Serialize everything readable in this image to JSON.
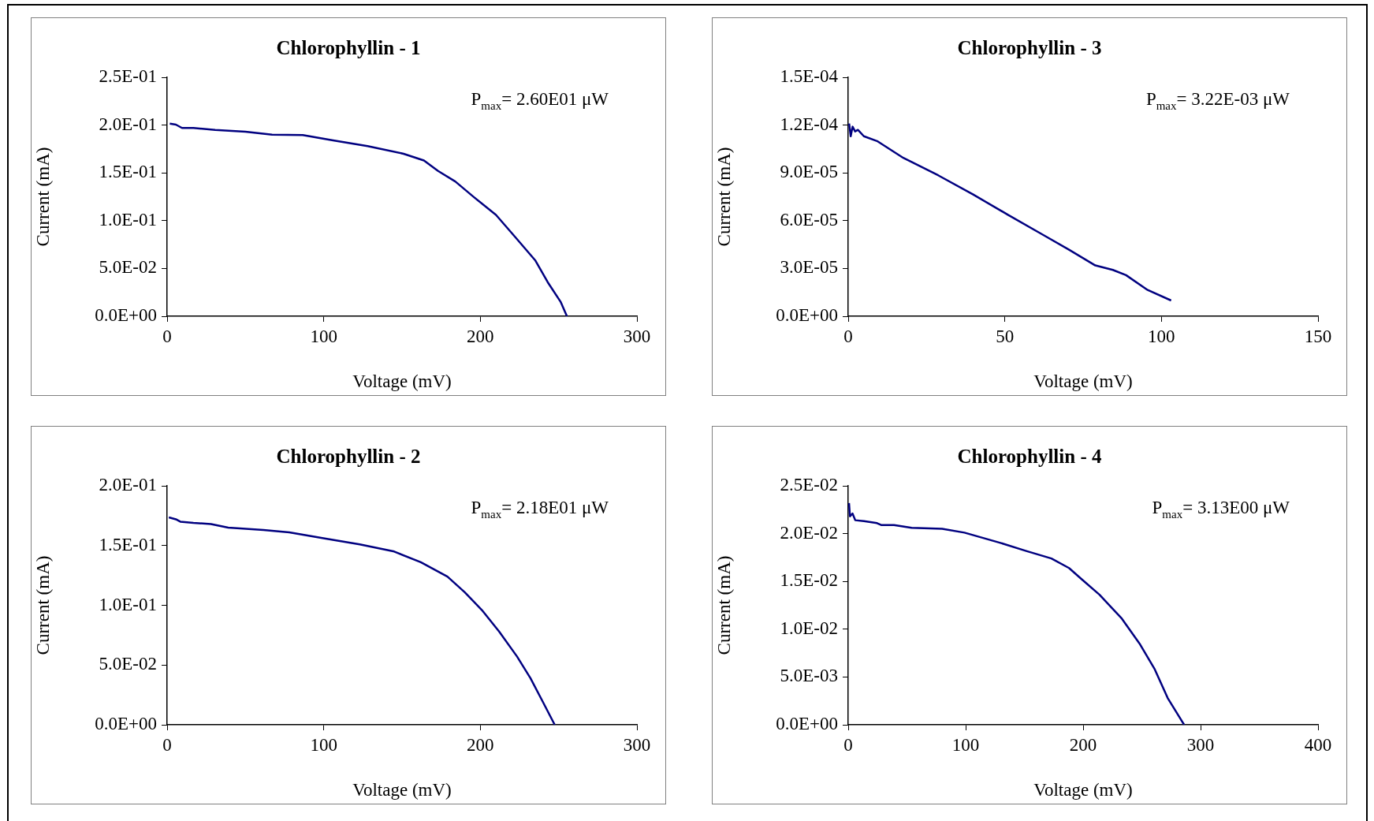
{
  "chart_data": [
    {
      "type": "line",
      "title": "Chlorophyllin - 1",
      "xlabel": "Voltage (mV)",
      "ylabel": "Current (mA)",
      "annotations": [
        "P$_{max}$= 2.60E01 μW"
      ],
      "legend": false,
      "grid": false,
      "marker": "none",
      "line_style": "solid",
      "xlim": [
        0,
        300
      ],
      "xticks": [
        0,
        100,
        200,
        300
      ],
      "ylim": [
        0,
        0.25
      ],
      "yticks": [
        {
          "value": 0,
          "label": "0.0E+00"
        },
        {
          "value": 0.05,
          "label": "5.0E-02"
        },
        {
          "value": 0.1,
          "label": "1.0E-01"
        },
        {
          "value": 0.15,
          "label": "1.5E-01"
        },
        {
          "value": 0.2,
          "label": "2.0E-01"
        },
        {
          "value": 0.25,
          "label": "2.5E-01"
        }
      ],
      "x": [
        1.7,
        5.6,
        9.5,
        16.8,
        30.7,
        50,
        67,
        86.6,
        106,
        128,
        151,
        164,
        173,
        184,
        196,
        210,
        223,
        235,
        243,
        251.4,
        255.3
      ],
      "series": [
        {
          "color": "#000080",
          "values": [
            0.2015,
            0.2005,
            0.197,
            0.197,
            0.195,
            0.193,
            0.19,
            0.1896,
            0.184,
            0.178,
            0.17,
            0.163,
            0.152,
            0.141,
            0.1245,
            0.106,
            0.0815,
            0.0586,
            0.0357,
            0.0147,
            0
          ]
        }
      ]
    },
    {
      "type": "line",
      "title": "Chlorophyllin - 3",
      "xlabel": "Voltage (mV)",
      "ylabel": "Current (mA)",
      "annotations": [
        "P$_{max}$= 3.22E-03 μW"
      ],
      "legend": false,
      "grid": false,
      "marker": "none",
      "line_style": "solid",
      "xlim": [
        0,
        150
      ],
      "xticks": [
        0,
        50,
        100,
        150
      ],
      "ylim": [
        0,
        0.00015
      ],
      "yticks": [
        {
          "value": 0,
          "label": "0.0E+00"
        },
        {
          "value": 3e-05,
          "label": "3.0E-05"
        },
        {
          "value": 6e-05,
          "label": "6.0E-05"
        },
        {
          "value": 9e-05,
          "label": "9.0E-05"
        },
        {
          "value": 0.00012,
          "label": "1.2E-04"
        },
        {
          "value": 0.00015,
          "label": "1.5E-04"
        }
      ],
      "x": [
        0.3,
        0.8,
        1.4,
        2.2,
        3.1,
        5,
        9.2,
        17.6,
        28.7,
        39.9,
        51,
        62.2,
        70.5,
        78.9,
        84.5,
        88.7,
        95.6,
        103.1
      ],
      "series": [
        {
          "color": "#000080",
          "values": [
            0.000121,
            0.000113,
            0.000119,
            0.000116,
            0.000117,
            0.000113,
            0.00011,
            9.94e-05,
            8.85e-05,
            7.64e-05,
            6.37e-05,
            5.11e-05,
            4.18e-05,
            3.19e-05,
            2.91e-05,
            2.58e-05,
            1.65e-05,
            9.9e-06
          ]
        }
      ]
    },
    {
      "type": "line",
      "title": "Chlorophyllin - 2",
      "xlabel": "Voltage (mV)",
      "ylabel": "Current (mA)",
      "annotations": [
        "P$_{max}$= 2.18E01 μW"
      ],
      "legend": false,
      "grid": false,
      "marker": "none",
      "line_style": "solid",
      "xlim": [
        0,
        300
      ],
      "xticks": [
        0,
        100,
        200,
        300
      ],
      "ylim": [
        0,
        0.2
      ],
      "yticks": [
        {
          "value": 0,
          "label": "0.0E+00"
        },
        {
          "value": 0.05,
          "label": "5.0E-02"
        },
        {
          "value": 0.1,
          "label": "1.0E-01"
        },
        {
          "value": 0.15,
          "label": "1.5E-01"
        },
        {
          "value": 0.2,
          "label": "2.0E-01"
        }
      ],
      "x": [
        1.1,
        5.6,
        8.4,
        16.8,
        28,
        39,
        61.5,
        78,
        100.6,
        123,
        145,
        162,
        179,
        190,
        201,
        212,
        223.5,
        232,
        240,
        247.5
      ],
      "series": [
        {
          "color": "#000080",
          "values": [
            0.1736,
            0.172,
            0.17,
            0.169,
            0.168,
            0.165,
            0.163,
            0.161,
            0.156,
            0.151,
            0.145,
            0.136,
            0.124,
            0.111,
            0.096,
            0.078,
            0.057,
            0.039,
            0.019,
            0
          ]
        }
      ]
    },
    {
      "type": "line",
      "title": "Chlorophyllin - 4",
      "xlabel": "Voltage (mV)",
      "ylabel": "Current (mA)",
      "annotations": [
        "P$_{max}$= 3.13E00 μW"
      ],
      "legend": false,
      "grid": false,
      "marker": "none",
      "line_style": "solid",
      "xlim": [
        0,
        400
      ],
      "xticks": [
        0,
        100,
        200,
        300,
        400
      ],
      "ylim": [
        0,
        0.025
      ],
      "yticks": [
        {
          "value": 0,
          "label": "0.0E+00"
        },
        {
          "value": 0.005,
          "label": "5.0E-03"
        },
        {
          "value": 0.01,
          "label": "1.0E-02"
        },
        {
          "value": 0.015,
          "label": "1.5E-02"
        },
        {
          "value": 0.02,
          "label": "2.0E-02"
        },
        {
          "value": 0.025,
          "label": "2.5E-02"
        }
      ],
      "x": [
        0.7,
        1.5,
        3.7,
        6,
        13.4,
        24.5,
        28,
        39,
        54,
        80,
        99,
        129,
        151,
        173,
        188,
        199,
        214,
        233,
        248,
        261,
        272,
        281,
        286
      ],
      "series": [
        {
          "color": "#000080",
          "values": [
            0.0232,
            0.0218,
            0.0221,
            0.0214,
            0.0213,
            0.0211,
            0.0209,
            0.0209,
            0.0206,
            0.0205,
            0.0201,
            0.01905,
            0.0182,
            0.0174,
            0.0164,
            0.0152,
            0.0136,
            0.0111,
            0.0085,
            0.0058,
            0.0028,
            0.001,
            0
          ]
        }
      ]
    }
  ]
}
